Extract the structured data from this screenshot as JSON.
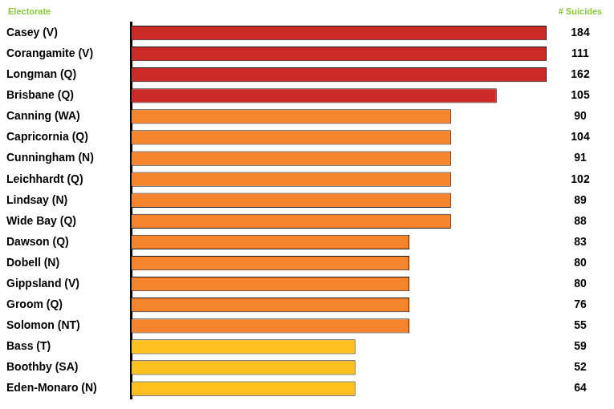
{
  "chart_data": {
    "type": "bar",
    "orientation": "horizontal",
    "y_label": "Electorate",
    "categories": [
      "Casey (V)",
      "Corangamite (V)",
      "Longman (Q)",
      "Brisbane (Q)",
      "Canning (WA)",
      "Capricornia (Q)",
      "Cunningham (N)",
      "Leichhardt (Q)",
      "Lindsay (N)",
      "Wide Bay (Q)",
      "Dawson (Q)",
      "Dobell (N)",
      "Gippsland (V)",
      "Groom (Q)",
      "Solomon (NT)",
      "Bass (T)",
      "Boothby (SA)",
      "Eden-Monaro (N)"
    ],
    "values": [
      100,
      100,
      100,
      88,
      77,
      77,
      77,
      77,
      77,
      77,
      67,
      67,
      67,
      67,
      67,
      54,
      54,
      54
    ],
    "colors": [
      "#cc2a27",
      "#cc2a27",
      "#cc2a27",
      "#cc2a27",
      "#f5842c",
      "#f5842c",
      "#f5842c",
      "#f5842c",
      "#f5842c",
      "#f5842c",
      "#f5842c",
      "#f5842c",
      "#f5842c",
      "#f5842c",
      "#f5842c",
      "#fdc01e",
      "#fdc01e",
      "#fdc01e"
    ],
    "suicides_label": "# Suicides",
    "suicides": [
      184,
      111,
      162,
      105,
      90,
      104,
      91,
      102,
      89,
      88,
      83,
      80,
      80,
      76,
      55,
      59,
      52,
      64
    ],
    "xlim": [
      0,
      100
    ],
    "grid": false,
    "tick_labels": "y"
  }
}
